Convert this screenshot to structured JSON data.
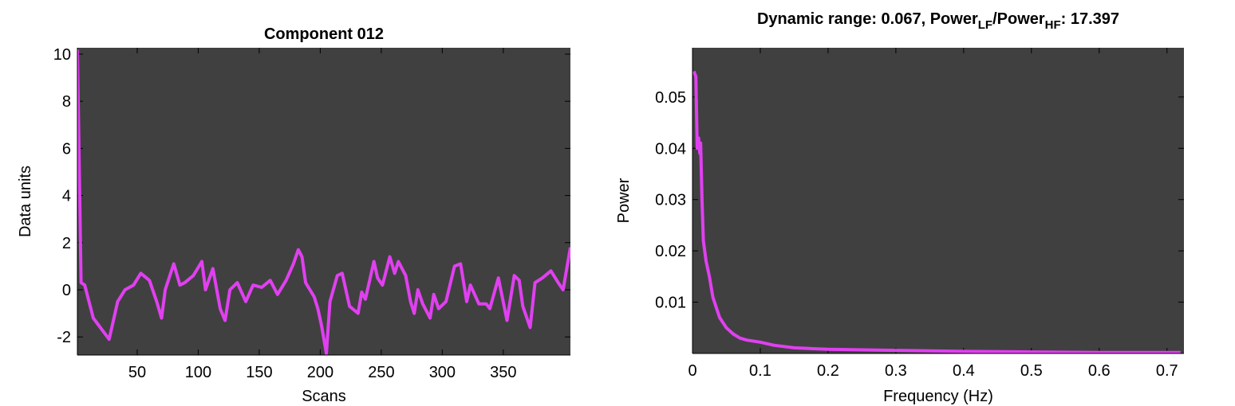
{
  "chart_data": [
    {
      "type": "line",
      "title": "Component 012",
      "title_color": "#7ff8ff",
      "xlabel": "Scans",
      "ylabel": "Data units",
      "xlim": [
        1,
        405
      ],
      "ylim": [
        -2.77,
        10.27
      ],
      "xticks": [
        50,
        100,
        150,
        200,
        250,
        300,
        350
      ],
      "yticks": [
        -2,
        0,
        2,
        4,
        6,
        8,
        10
      ],
      "background": "#404040",
      "color": "#e040f0",
      "x": [
        1,
        4,
        7,
        14,
        27,
        34,
        40,
        47,
        53,
        60,
        66,
        70,
        73,
        80,
        85,
        89,
        96,
        103,
        106,
        112,
        118,
        122,
        126,
        132,
        139,
        145,
        152,
        159,
        165,
        172,
        178,
        182,
        185,
        188,
        195,
        198,
        201,
        205,
        208,
        214,
        218,
        224,
        231,
        234,
        237,
        244,
        247,
        251,
        257,
        261,
        264,
        270,
        274,
        277,
        280,
        284,
        290,
        293,
        297,
        303,
        310,
        315,
        320,
        323,
        330,
        336,
        339,
        346,
        353,
        359,
        363,
        366,
        372,
        376,
        382,
        389,
        395,
        399,
        402,
        405
      ],
      "values": [
        10.2,
        0.3,
        0.2,
        -1.2,
        -2.1,
        -0.5,
        0,
        0.2,
        0.7,
        0.4,
        -0.5,
        -1.2,
        0,
        1.1,
        0.2,
        0.3,
        0.6,
        1.2,
        0,
        0.9,
        -0.8,
        -1.3,
        0,
        0.3,
        -0.5,
        0.2,
        0.1,
        0.4,
        -0.2,
        0.4,
        1.1,
        1.7,
        1.4,
        0.3,
        -0.3,
        -0.8,
        -1.5,
        -2.7,
        -0.5,
        0.6,
        0.7,
        -0.7,
        -1.0,
        -0.1,
        -0.4,
        1.2,
        0.5,
        0.2,
        1.4,
        0.7,
        1.2,
        0.6,
        -0.5,
        -1.0,
        0,
        -0.6,
        -1.2,
        -0.2,
        -0.8,
        -0.5,
        1.0,
        1.1,
        -0.5,
        0.2,
        -0.6,
        -0.6,
        -0.8,
        0.5,
        -1.3,
        0.6,
        0.4,
        -0.7,
        -1.6,
        0.3,
        0.5,
        0.8,
        0.3,
        0,
        0.9,
        1.8
      ]
    },
    {
      "type": "line",
      "title": [
        "Dynamic range: 0.067, Power",
        "LF",
        "/Power",
        "HF",
        ": 17.397"
      ],
      "title_color": "#000000",
      "xlabel": "Frequency (Hz)",
      "ylabel": "Power",
      "xlim": [
        0,
        0.725
      ],
      "ylim": [
        0,
        0.0596
      ],
      "xticks": [
        0,
        0.1,
        0.2,
        0.3,
        0.4,
        0.5,
        0.6,
        0.7
      ],
      "yticks": [
        0.01,
        0.02,
        0.03,
        0.04,
        0.05
      ],
      "background": "#404040",
      "color": "#e040f0",
      "x": [
        0.002,
        0.005,
        0.007,
        0.009,
        0.011,
        0.012,
        0.014,
        0.016,
        0.02,
        0.025,
        0.03,
        0.035,
        0.04,
        0.05,
        0.06,
        0.07,
        0.08,
        0.1,
        0.12,
        0.15,
        0.2,
        0.3,
        0.4,
        0.5,
        0.6,
        0.72
      ],
      "values": [
        0.055,
        0.054,
        0.04,
        0.042,
        0.039,
        0.041,
        0.03,
        0.022,
        0.018,
        0.015,
        0.011,
        0.009,
        0.007,
        0.005,
        0.0038,
        0.003,
        0.0026,
        0.0022,
        0.0016,
        0.0011,
        0.0008,
        0.0006,
        0.0004,
        0.0003,
        0.0002,
        0.0002
      ]
    }
  ]
}
